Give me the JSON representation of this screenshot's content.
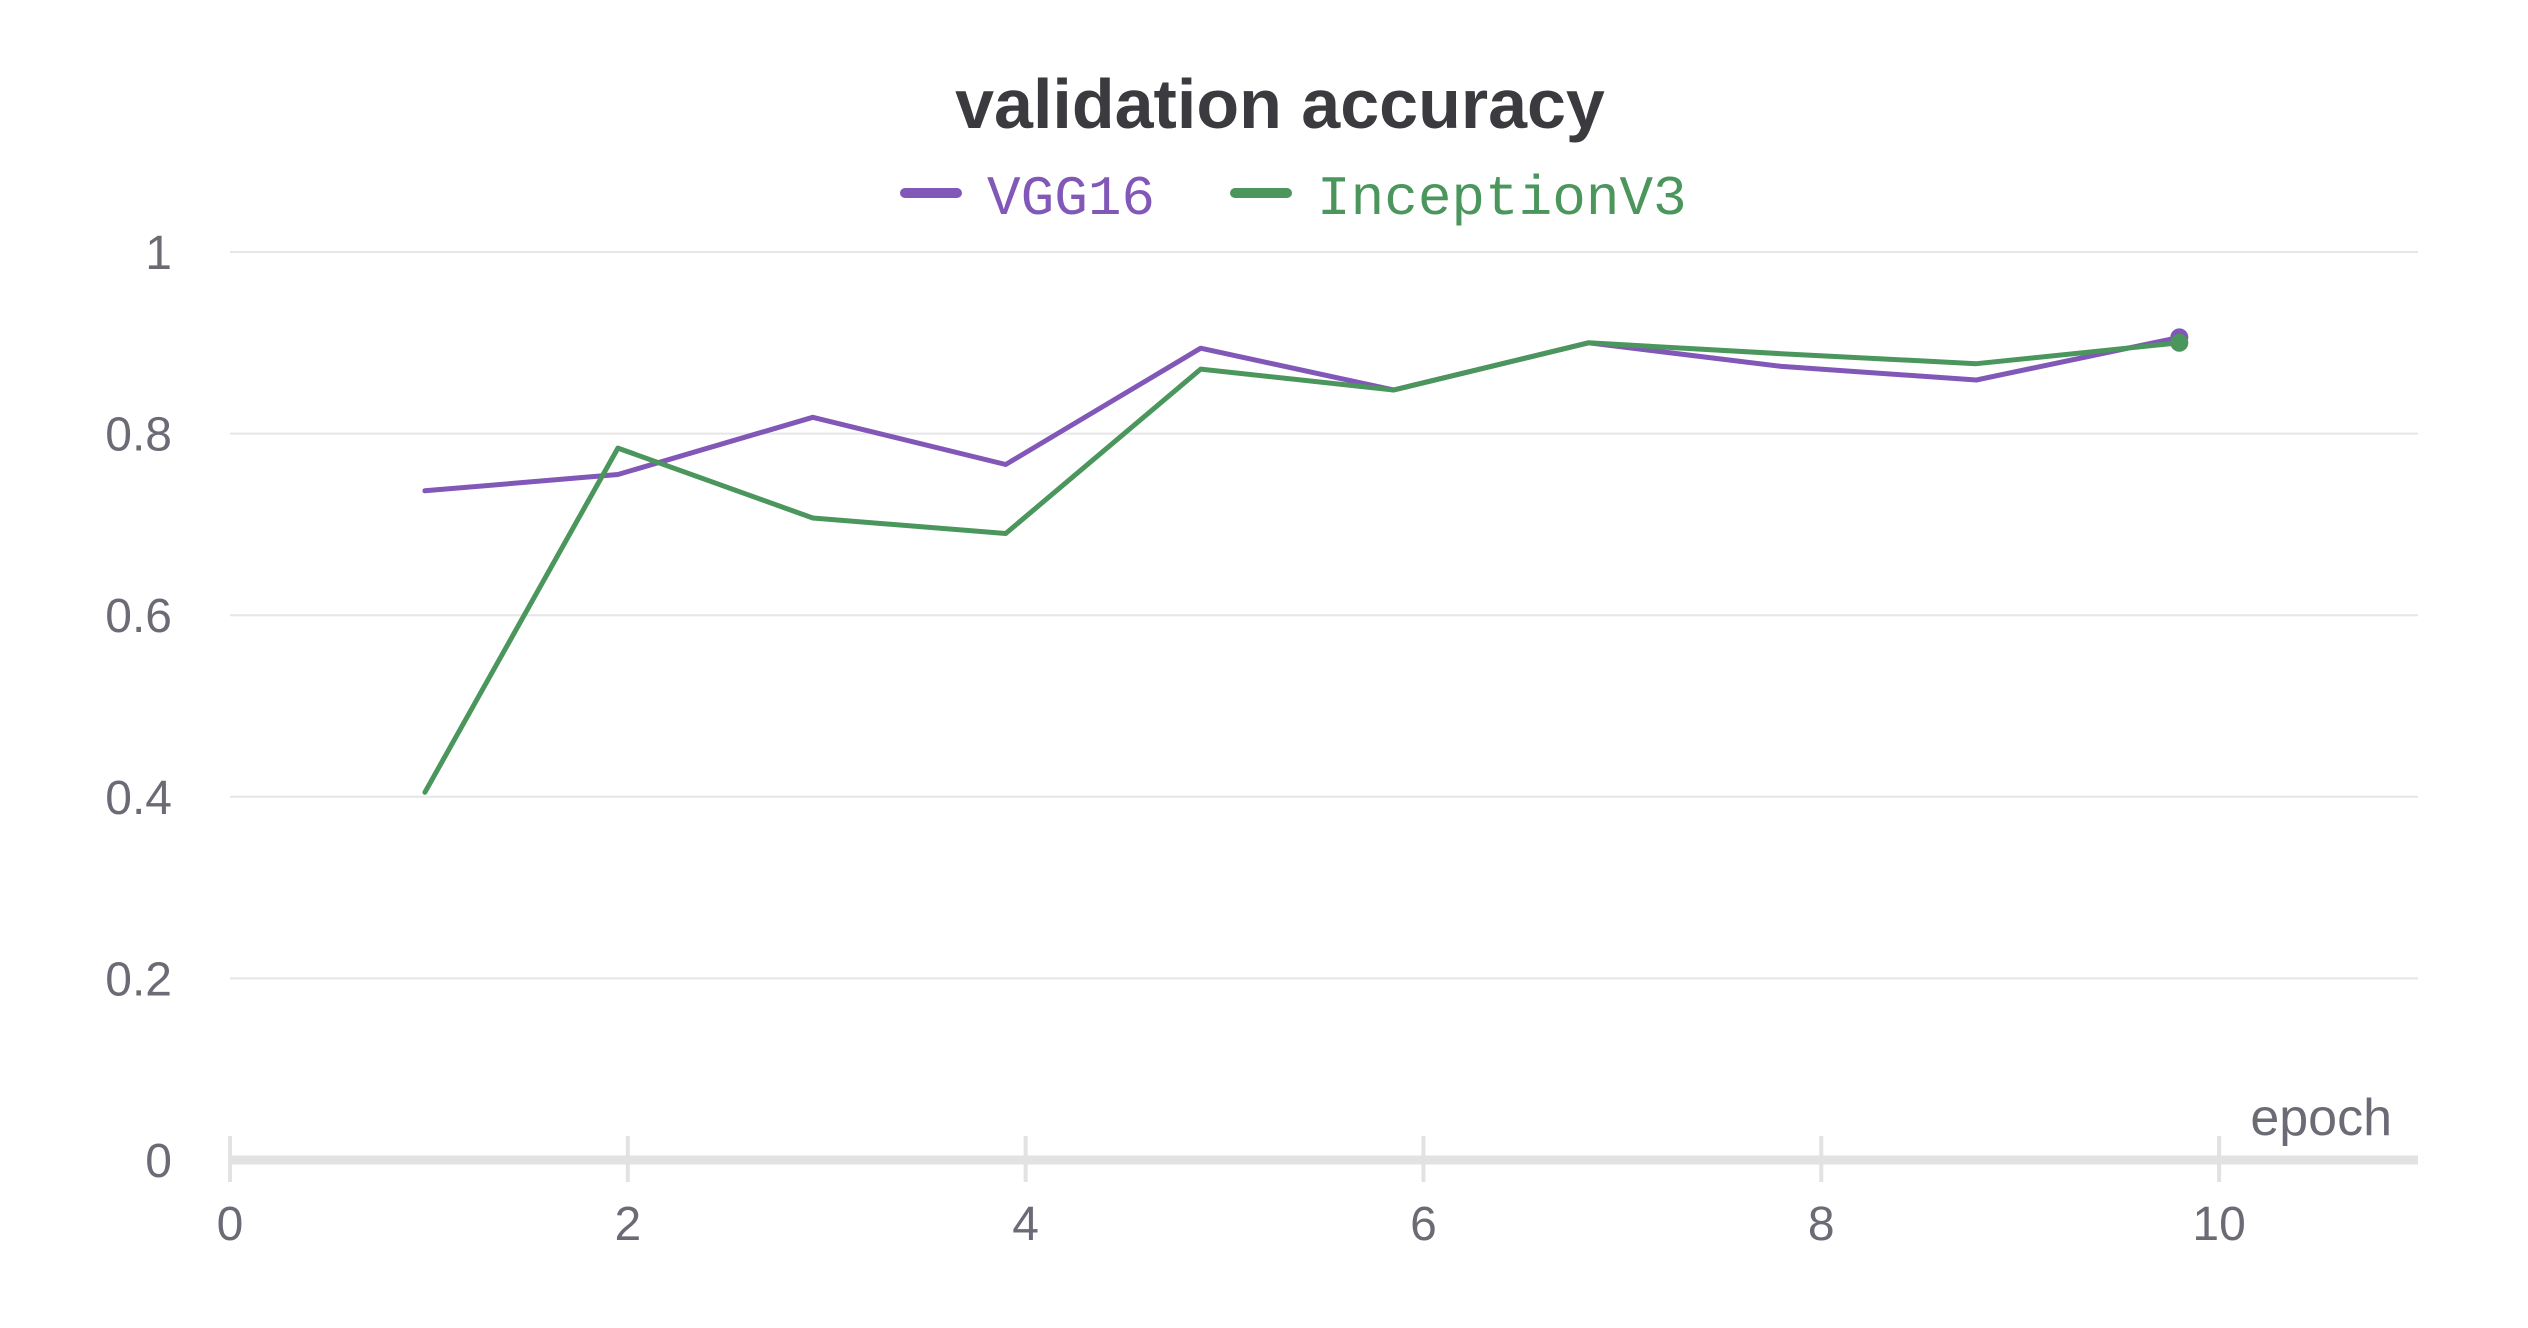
{
  "chart_data": {
    "type": "line",
    "title": "validation accuracy",
    "xlabel": "epoch",
    "ylabel": "",
    "xlim": [
      0,
      11
    ],
    "ylim": [
      0,
      1
    ],
    "x_ticks": [
      0,
      2,
      4,
      6,
      8,
      10
    ],
    "y_ticks": [
      0,
      0.2,
      0.4,
      0.6,
      0.8,
      1
    ],
    "x_tick_labels": [
      "0",
      "2",
      "4",
      "6",
      "8",
      "10"
    ],
    "y_tick_labels": [
      "0",
      "0.2",
      "0.4",
      "0.6",
      "0.8",
      "1"
    ],
    "grid": true,
    "legend_position": "top-center",
    "series": [
      {
        "name": "VGG16",
        "color": "#8157b8",
        "x": [
          0.98,
          1.95,
          2.93,
          3.9,
          4.88,
          5.85,
          6.83,
          7.8,
          8.78,
          9.8
        ],
        "y": [
          0.737,
          0.755,
          0.818,
          0.766,
          0.894,
          0.848,
          0.9,
          0.874,
          0.859,
          0.906
        ]
      },
      {
        "name": "InceptionV3",
        "color": "#4a965c",
        "x": [
          0.98,
          1.95,
          2.93,
          3.9,
          4.88,
          5.85,
          6.83,
          7.8,
          8.78,
          9.8
        ],
        "y": [
          0.405,
          0.784,
          0.707,
          0.69,
          0.871,
          0.848,
          0.9,
          0.888,
          0.877,
          0.9
        ]
      }
    ]
  }
}
